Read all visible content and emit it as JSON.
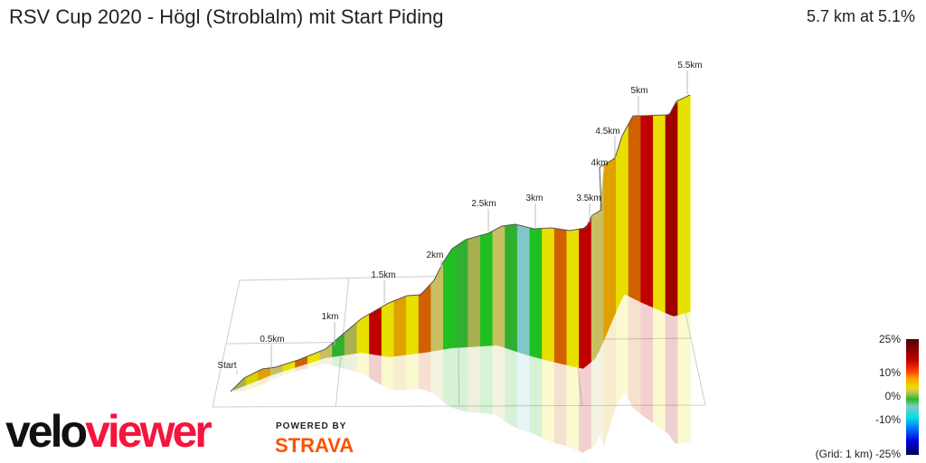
{
  "header": {
    "title": "RSV Cup 2020 - Högl (Stroblalm) mit Start Piding",
    "summary": "5.7 km at 5.1%"
  },
  "chart_data": {
    "type": "area",
    "subtype": "3d-elevation-profile",
    "distance_markers": [
      "Start",
      "0.5km",
      "1km",
      "1.5km",
      "2km",
      "2.5km",
      "3km",
      "3.5km",
      "4km",
      "4.5km",
      "5km",
      "5.5km"
    ],
    "distance_km": 5.7,
    "average_gradient_pct": 5.1,
    "segment_colors": [
      "#a8b050",
      "#d8d000",
      "#e0a000",
      "#c8c060",
      "#e8e000",
      "#d06000",
      "#e8e000",
      "#c8c060",
      "#30b030",
      "#a8b050",
      "#e8e000",
      "#c00000",
      "#e8e000",
      "#e0a000",
      "#e8e000",
      "#d06000",
      "#c8c060",
      "#20c020",
      "#30b030",
      "#a8b050",
      "#20c020",
      "#c8c060",
      "#30b030",
      "#80c8c8",
      "#20c020",
      "#e8e000",
      "#d06000",
      "#e8e000",
      "#c00000",
      "#c8c060",
      "#e0a000",
      "#e8e000",
      "#d06000",
      "#c00000",
      "#e8e000",
      "#a00000",
      "#e8e000"
    ],
    "legend": {
      "ticks": [
        "25%",
        "10%",
        "0%",
        "-10%",
        "-25%"
      ],
      "range_pct": [
        -25,
        25
      ],
      "grid_note": "(Grid: 1 km)"
    }
  },
  "branding": {
    "logo_part1": "velo",
    "logo_part2": "viewer",
    "powered_by": "POWERED BY",
    "strava": "STRAVA"
  }
}
